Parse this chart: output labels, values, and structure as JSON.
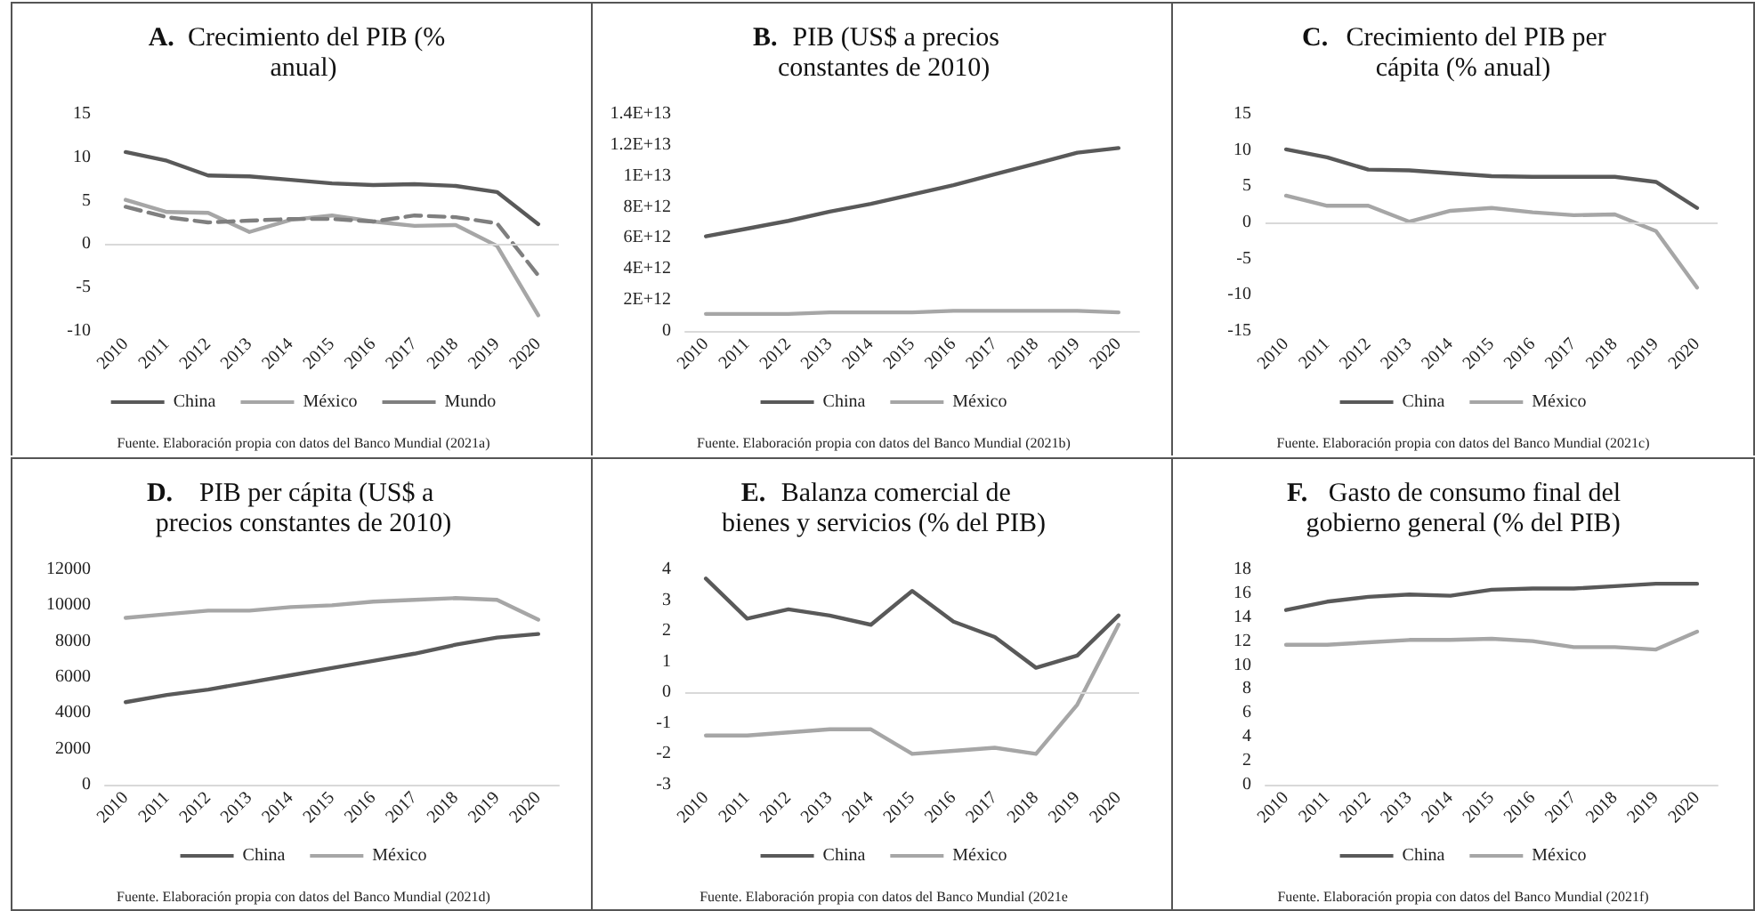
{
  "chart_data": [
    {
      "type": "line",
      "title": "A. Crecimiento del PIB (% anual)",
      "categories": [
        "2010",
        "2011",
        "2012",
        "2013",
        "2014",
        "2015",
        "2016",
        "2017",
        "2018",
        "2019",
        "2020"
      ],
      "series": [
        {
          "name": "China",
          "color": "#595959",
          "values": [
            10.6,
            9.6,
            7.9,
            7.8,
            7.4,
            7.0,
            6.8,
            6.9,
            6.7,
            6.0,
            2.3
          ]
        },
        {
          "name": "México",
          "color": "#a6a6a6",
          "values": [
            5.1,
            3.7,
            3.6,
            1.4,
            2.8,
            3.3,
            2.6,
            2.1,
            2.2,
            -0.2,
            -8.2
          ]
        },
        {
          "name": "Mundo",
          "color": "#7f7f7f",
          "line_style": "dashed",
          "values": [
            4.3,
            3.1,
            2.5,
            2.7,
            2.9,
            2.9,
            2.6,
            3.3,
            3.1,
            2.4,
            -3.6
          ]
        }
      ],
      "ylim": [
        -10,
        15
      ],
      "yticks": [
        -10,
        -5,
        0,
        5,
        10,
        15
      ],
      "grid": false,
      "ref_lines": [
        {
          "axis": "y",
          "value": 0,
          "color": "#d9d9d9"
        }
      ],
      "legend": "bottom",
      "marker": "none",
      "line_style": "solid",
      "annotations": [
        "Fuente. Elaboración propia con datos del Banco Mundial (2021a)"
      ]
    },
    {
      "type": "line",
      "title": "B. PIB (US$ a precios constantes de 2010)",
      "categories": [
        "2010",
        "2011",
        "2012",
        "2013",
        "2014",
        "2015",
        "2016",
        "2017",
        "2018",
        "2019",
        "2020"
      ],
      "series": [
        {
          "name": "China",
          "color": "#595959",
          "values": [
            6100000000000,
            6600000000000,
            7100000000000,
            7700000000000,
            8200000000000,
            8800000000000,
            9400000000000,
            10100000000000,
            10800000000000,
            11500000000000,
            11800000000000
          ]
        },
        {
          "name": "México",
          "color": "#a6a6a6",
          "values": [
            1100000000000,
            1100000000000,
            1100000000000,
            1200000000000,
            1200000000000,
            1200000000000,
            1300000000000,
            1300000000000,
            1300000000000,
            1300000000000,
            1200000000000
          ]
        }
      ],
      "ylim": [
        0,
        14000000000000
      ],
      "yticks": [
        0,
        {
          "value": 2000000000000,
          "label": "2E+12"
        },
        {
          "value": 4000000000000,
          "label": "4E+12"
        },
        {
          "value": 6000000000000,
          "label": "6E+12"
        },
        {
          "value": 8000000000000,
          "label": "8E+12"
        },
        {
          "value": 10000000000000,
          "label": "1E+13"
        },
        {
          "value": 12000000000000,
          "label": "1.2E+13"
        },
        {
          "value": 14000000000000,
          "label": "1.4E+13"
        }
      ],
      "grid": false,
      "legend": "bottom",
      "marker": "none",
      "line_style": "solid",
      "annotations": [
        "Fuente. Elaboración propia con datos del Banco Mundial (2021b)"
      ]
    },
    {
      "type": "line",
      "title": "C. Crecimiento del PIB per cápita (% anual)",
      "categories": [
        "2010",
        "2011",
        "2012",
        "2013",
        "2014",
        "2015",
        "2016",
        "2017",
        "2018",
        "2019",
        "2020"
      ],
      "series": [
        {
          "name": "China",
          "color": "#595959",
          "values": [
            10.1,
            9.0,
            7.3,
            7.2,
            6.8,
            6.4,
            6.3,
            6.3,
            6.3,
            5.6,
            2.0
          ]
        },
        {
          "name": "México",
          "color": "#a6a6a6",
          "values": [
            3.7,
            2.3,
            2.3,
            0.1,
            1.6,
            2.0,
            1.4,
            1.0,
            1.1,
            -1.2,
            -9.0
          ]
        }
      ],
      "ylim": [
        -15,
        15
      ],
      "yticks": [
        -15,
        -10,
        -5,
        0,
        5,
        10,
        15
      ],
      "grid": false,
      "ref_lines": [
        {
          "axis": "y",
          "value": 0,
          "color": "#d9d9d9"
        }
      ],
      "legend": "bottom",
      "marker": "none",
      "line_style": "solid",
      "annotations": [
        "Fuente. Elaboración propia con datos del Banco Mundial (2021c)"
      ]
    },
    {
      "type": "line",
      "title": "D. PIB per cápita (US$ a precios constantes de 2010)",
      "categories": [
        "2010",
        "2011",
        "2012",
        "2013",
        "2014",
        "2015",
        "2016",
        "2017",
        "2018",
        "2019",
        "2020"
      ],
      "series": [
        {
          "name": "China",
          "color": "#595959",
          "values": [
            4600,
            5000,
            5300,
            5700,
            6100,
            6500,
            6900,
            7300,
            7800,
            8200,
            8400
          ]
        },
        {
          "name": "México",
          "color": "#a6a6a6",
          "values": [
            9300,
            9500,
            9700,
            9700,
            9900,
            10000,
            10200,
            10300,
            10400,
            10300,
            9200
          ]
        }
      ],
      "ylim": [
        0,
        12000
      ],
      "yticks": [
        0,
        2000,
        4000,
        6000,
        8000,
        10000,
        12000
      ],
      "grid": false,
      "legend": "bottom",
      "marker": "none",
      "line_style": "solid",
      "annotations": [
        "Fuente. Elaboración propia con datos del Banco Mundial (2021d)"
      ]
    },
    {
      "type": "line",
      "title": "E. Balanza comercial de bienes y servicios (% del PIB)",
      "categories": [
        "2010",
        "2011",
        "2012",
        "2013",
        "2014",
        "2015",
        "2016",
        "2017",
        "2018",
        "2019",
        "2020"
      ],
      "series": [
        {
          "name": "China",
          "color": "#595959",
          "values": [
            3.7,
            2.4,
            2.7,
            2.5,
            2.2,
            3.3,
            2.3,
            1.8,
            0.8,
            1.2,
            2.5
          ]
        },
        {
          "name": "México",
          "color": "#a6a6a6",
          "values": [
            -1.4,
            -1.4,
            -1.3,
            -1.2,
            -1.2,
            -2.0,
            -1.9,
            -1.8,
            -2.0,
            -0.4,
            2.2
          ]
        }
      ],
      "ylim": [
        -3,
        4
      ],
      "yticks": [
        -3,
        -2,
        -1,
        0,
        1,
        2,
        3,
        4
      ],
      "grid": false,
      "ref_lines": [
        {
          "axis": "y",
          "value": 0,
          "color": "#d9d9d9"
        }
      ],
      "legend": "bottom",
      "marker": "none",
      "line_style": "solid",
      "annotations": [
        "Fuente. Elaboración propia con datos del Banco Mundial (2021e"
      ]
    },
    {
      "type": "line",
      "title": "F. Gasto de consumo final del gobierno general (% del PIB)",
      "categories": [
        "2010",
        "2011",
        "2012",
        "2013",
        "2014",
        "2015",
        "2016",
        "2017",
        "2018",
        "2019",
        "2020"
      ],
      "series": [
        {
          "name": "China",
          "color": "#595959",
          "values": [
            14.6,
            15.3,
            15.7,
            15.9,
            15.8,
            16.3,
            16.4,
            16.4,
            16.6,
            16.8,
            16.8
          ]
        },
        {
          "name": "México",
          "color": "#a6a6a6",
          "values": [
            11.7,
            11.7,
            11.9,
            12.1,
            12.1,
            12.2,
            12.0,
            11.5,
            11.5,
            11.3,
            12.8
          ]
        }
      ],
      "ylim": [
        0,
        18
      ],
      "yticks": [
        0,
        2,
        4,
        6,
        8,
        10,
        12,
        14,
        16,
        18
      ],
      "grid": false,
      "legend": "bottom",
      "marker": "none",
      "line_style": "solid",
      "annotations": [
        "Fuente. Elaboración propia con datos del Banco Mundial (2021f)"
      ]
    }
  ]
}
